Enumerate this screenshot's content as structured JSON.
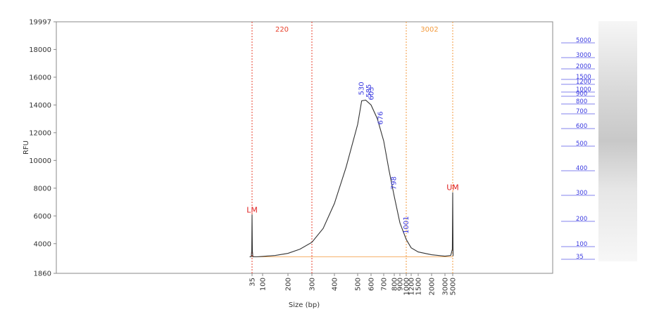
{
  "chart_data": {
    "type": "line",
    "y_label": "RFU",
    "x_label": "Size (bp)",
    "ylim": [
      1860,
      19997
    ],
    "yticks": [
      1860,
      4000,
      6000,
      8000,
      10000,
      12000,
      14000,
      16000,
      18000,
      19997
    ],
    "xticks": [
      35,
      100,
      200,
      300,
      400,
      500,
      600,
      700,
      800,
      900,
      1000,
      1200,
      1500,
      2000,
      3000,
      5000
    ],
    "color": "#333333",
    "x": [
      20,
      30,
      33,
      35,
      37,
      40,
      60,
      100,
      150,
      200,
      250,
      300,
      350,
      400,
      450,
      500,
      530,
      560,
      600,
      650,
      700,
      750,
      800,
      900,
      1000,
      1200,
      1500,
      2000,
      3000,
      4500,
      4900,
      5000,
      5100
    ],
    "values": [
      3050,
      3060,
      3500,
      6100,
      3500,
      3060,
      3050,
      3080,
      3150,
      3300,
      3600,
      4100,
      5100,
      6900,
      9500,
      12600,
      14300,
      14350,
      14000,
      13000,
      11400,
      9300,
      7400,
      5500,
      4300,
      3700,
      3400,
      3200,
      3100,
      3150,
      3600,
      7700,
      3100
    ],
    "regions": [
      {
        "label": "220",
        "from": 35,
        "to": 300,
        "color": "#e8412c"
      },
      {
        "label": "3002",
        "from": 1000,
        "to": 5000,
        "color": "#f39a3c"
      }
    ],
    "markers": [
      {
        "label": "LM",
        "x": 35,
        "y": 6100,
        "color": "#e02020"
      },
      {
        "label": "UM",
        "x": 5000,
        "y": 7700,
        "color": "#e02020"
      }
    ],
    "peaks": [
      530,
      585,
      603,
      676,
      798,
      1001
    ],
    "peak_color": "#3a3ae0",
    "gel_ladder": [
      5000,
      3000,
      2000,
      1500,
      1200,
      1000,
      900,
      800,
      700,
      600,
      500,
      400,
      300,
      200,
      100,
      35
    ]
  }
}
